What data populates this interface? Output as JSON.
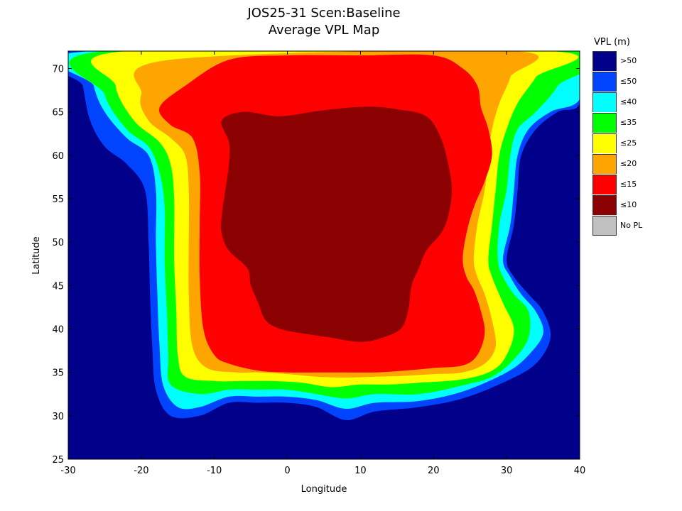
{
  "title_line1": "JOS25-31 Scen:Baseline",
  "title_line2": "Average VPL Map",
  "chart_data": {
    "type": "heatmap",
    "xlabel": "Longitude",
    "ylabel": "Latitude",
    "xlim": [
      -30,
      40
    ],
    "ylim": [
      25,
      72
    ],
    "xticks": [
      -30,
      -20,
      -10,
      0,
      10,
      20,
      30,
      40
    ],
    "yticks": [
      25,
      30,
      35,
      40,
      45,
      50,
      55,
      60,
      65,
      70
    ],
    "grid": false,
    "legend_placement": "right",
    "legend_title": "VPL (m)",
    "legend": [
      {
        "label": ">50",
        "color": "#00008B"
      },
      {
        "label": "≤50",
        "color": "#0044FF"
      },
      {
        "label": "≤40",
        "color": "#00FFFF"
      },
      {
        "label": "≤35",
        "color": "#00FF00"
      },
      {
        "label": "≤25",
        "color": "#FFFF00"
      },
      {
        "label": "≤20",
        "color": "#FFA500"
      },
      {
        "label": "≤15",
        "color": "#FF0000"
      },
      {
        "label": "≤10",
        "color": "#8B0000"
      },
      {
        "label": "No PL",
        "color": "#C0C0C0"
      }
    ],
    "contours": [
      {
        "level": "≤50",
        "points": [
          [
            -29,
            72
          ],
          [
            -28,
            68
          ],
          [
            -27,
            64
          ],
          [
            -25,
            61
          ],
          [
            -22,
            59
          ],
          [
            -19.5,
            56
          ],
          [
            -19,
            50
          ],
          [
            -18.8,
            44
          ],
          [
            -18.5,
            38
          ],
          [
            -18,
            33
          ],
          [
            -16,
            30
          ],
          [
            -12,
            30
          ],
          [
            -8,
            31.5
          ],
          [
            -4,
            31.5
          ],
          [
            0,
            31.5
          ],
          [
            4,
            31
          ],
          [
            8,
            29.5
          ],
          [
            12,
            30.5
          ],
          [
            18,
            31
          ],
          [
            24,
            32
          ],
          [
            30,
            34
          ],
          [
            34,
            36
          ],
          [
            36,
            39
          ],
          [
            35,
            42
          ],
          [
            33,
            44
          ],
          [
            31,
            46
          ],
          [
            30,
            48
          ],
          [
            31,
            52
          ],
          [
            31.5,
            56
          ],
          [
            32,
            60
          ],
          [
            34,
            63
          ],
          [
            37,
            65
          ],
          [
            40,
            66
          ],
          [
            40,
            72
          ]
        ]
      },
      {
        "level": "≤40",
        "points": [
          [
            -27,
            72
          ],
          [
            -26.5,
            68
          ],
          [
            -25,
            65
          ],
          [
            -22,
            62
          ],
          [
            -19,
            60
          ],
          [
            -18,
            56
          ],
          [
            -18,
            50
          ],
          [
            -17.8,
            44
          ],
          [
            -17.5,
            38
          ],
          [
            -17,
            33.5
          ],
          [
            -15,
            31
          ],
          [
            -12,
            31
          ],
          [
            -8,
            32.2
          ],
          [
            -4,
            32.2
          ],
          [
            0,
            32.2
          ],
          [
            4,
            31.8
          ],
          [
            8,
            30.8
          ],
          [
            12,
            31.5
          ],
          [
            18,
            31.7
          ],
          [
            24,
            32.8
          ],
          [
            30,
            35
          ],
          [
            33,
            37
          ],
          [
            35,
            39.5
          ],
          [
            34,
            42
          ],
          [
            32,
            44
          ],
          [
            30.5,
            46
          ],
          [
            29.5,
            48
          ],
          [
            30.5,
            52
          ],
          [
            31,
            56
          ],
          [
            31.5,
            60
          ],
          [
            33,
            63
          ],
          [
            36,
            65
          ],
          [
            40,
            66.5
          ],
          [
            40,
            72
          ]
        ]
      },
      {
        "level": "≤35",
        "points": [
          [
            -25,
            72
          ],
          [
            -25,
            67
          ],
          [
            -22,
            63
          ],
          [
            -19,
            61
          ],
          [
            -17.5,
            58
          ],
          [
            -16.8,
            54
          ],
          [
            -16.8,
            48
          ],
          [
            -16.5,
            42
          ],
          [
            -16.3,
            37
          ],
          [
            -16,
            33.6
          ],
          [
            -12,
            32.5
          ],
          [
            -8,
            33
          ],
          [
            -4,
            33
          ],
          [
            0,
            33
          ],
          [
            4,
            32.5
          ],
          [
            8,
            32
          ],
          [
            12,
            32.5
          ],
          [
            18,
            32.5
          ],
          [
            24,
            33.5
          ],
          [
            28,
            34.5
          ],
          [
            31,
            36.5
          ],
          [
            33,
            39
          ],
          [
            33,
            42
          ],
          [
            31,
            44
          ],
          [
            29.5,
            46
          ],
          [
            28.8,
            48
          ],
          [
            29,
            52
          ],
          [
            30,
            56
          ],
          [
            30.5,
            60
          ],
          [
            31.5,
            63
          ],
          [
            34,
            65
          ],
          [
            37,
            68
          ],
          [
            39,
            72
          ]
        ]
      },
      {
        "level": "≤25",
        "points": [
          [
            -22,
            72
          ],
          [
            -23.5,
            68
          ],
          [
            -21,
            64
          ],
          [
            -17.5,
            61.5
          ],
          [
            -16,
            59
          ],
          [
            -15.5,
            55
          ],
          [
            -15.5,
            48
          ],
          [
            -15.2,
            42
          ],
          [
            -15,
            37
          ],
          [
            -14,
            34.5
          ],
          [
            -10,
            34
          ],
          [
            -6,
            34
          ],
          [
            -2,
            34
          ],
          [
            2,
            33.8
          ],
          [
            6,
            33.3
          ],
          [
            10,
            33.6
          ],
          [
            14,
            33.6
          ],
          [
            18,
            33.8
          ],
          [
            24,
            34.2
          ],
          [
            28,
            35.2
          ],
          [
            30,
            37
          ],
          [
            31,
            40
          ],
          [
            29.5,
            43
          ],
          [
            28,
            46
          ],
          [
            27.5,
            48
          ],
          [
            28,
            52
          ],
          [
            28.5,
            56
          ],
          [
            29,
            60
          ],
          [
            30,
            63
          ],
          [
            31.5,
            66
          ],
          [
            34,
            69
          ],
          [
            36,
            72
          ]
        ]
      },
      {
        "level": "≤20",
        "points": [
          [
            -16,
            71
          ],
          [
            -20,
            67
          ],
          [
            -19,
            64
          ],
          [
            -16,
            62
          ],
          [
            -14,
            60
          ],
          [
            -13.5,
            56
          ],
          [
            -13.5,
            50
          ],
          [
            -13.5,
            44
          ],
          [
            -13,
            38
          ],
          [
            -11,
            35.5
          ],
          [
            -7,
            35
          ],
          [
            -4,
            35
          ],
          [
            0,
            34.8
          ],
          [
            4,
            34.5
          ],
          [
            8,
            34.4
          ],
          [
            12,
            34.5
          ],
          [
            16,
            34.6
          ],
          [
            20,
            34.8
          ],
          [
            24,
            35
          ],
          [
            27,
            36
          ],
          [
            28.5,
            38
          ],
          [
            28,
            41
          ],
          [
            27,
            44
          ],
          [
            26,
            46
          ],
          [
            25.5,
            48
          ],
          [
            26,
            52
          ],
          [
            27,
            56
          ],
          [
            27.5,
            60
          ],
          [
            28,
            63
          ],
          [
            29,
            66
          ],
          [
            30.5,
            69
          ],
          [
            31,
            72
          ]
        ]
      },
      {
        "level": "≤15",
        "points": [
          [
            -8,
            71
          ],
          [
            -14,
            68
          ],
          [
            -17.5,
            65.5
          ],
          [
            -16,
            63.5
          ],
          [
            -13,
            62
          ],
          [
            -12,
            58
          ],
          [
            -12,
            52
          ],
          [
            -12,
            46
          ],
          [
            -11.5,
            40
          ],
          [
            -10,
            37
          ],
          [
            -8,
            36
          ],
          [
            -4,
            35.2
          ],
          [
            0,
            35
          ],
          [
            4,
            35
          ],
          [
            8,
            35
          ],
          [
            12,
            35
          ],
          [
            16,
            35.2
          ],
          [
            20,
            35.5
          ],
          [
            24,
            35.8
          ],
          [
            26,
            37
          ],
          [
            27,
            39.5
          ],
          [
            26.5,
            42
          ],
          [
            25.5,
            44.5
          ],
          [
            24.5,
            46
          ],
          [
            24,
            48
          ],
          [
            24.5,
            51
          ],
          [
            25.5,
            54
          ],
          [
            27,
            57
          ],
          [
            28,
            60
          ],
          [
            27.5,
            63
          ],
          [
            26.5,
            65.5
          ],
          [
            26,
            68
          ],
          [
            24,
            70
          ],
          [
            20,
            71.5
          ],
          [
            10,
            71.5
          ],
          [
            0,
            71.5
          ]
        ]
      },
      {
        "level": "≤10",
        "points": [
          [
            -9,
            64
          ],
          [
            -6,
            65
          ],
          [
            -1,
            64.5
          ],
          [
            5,
            65.2
          ],
          [
            11,
            65.6
          ],
          [
            15,
            65.3
          ],
          [
            19,
            64.5
          ],
          [
            21,
            62
          ],
          [
            22,
            59
          ],
          [
            22.5,
            56
          ],
          [
            22,
            53
          ],
          [
            21,
            51
          ],
          [
            19,
            49
          ],
          [
            18,
            47
          ],
          [
            17,
            45
          ],
          [
            16.5,
            42
          ],
          [
            15.5,
            40
          ],
          [
            13,
            39
          ],
          [
            10,
            38.5
          ],
          [
            6,
            39
          ],
          [
            2,
            39.5
          ],
          [
            -1,
            40
          ],
          [
            -3,
            41
          ],
          [
            -4,
            43
          ],
          [
            -5,
            45
          ],
          [
            -5.5,
            47
          ],
          [
            -8,
            49
          ],
          [
            -9,
            51
          ],
          [
            -9,
            53
          ],
          [
            -8.5,
            56
          ],
          [
            -8,
            59
          ],
          [
            -8,
            61.5
          ]
        ]
      }
    ]
  }
}
